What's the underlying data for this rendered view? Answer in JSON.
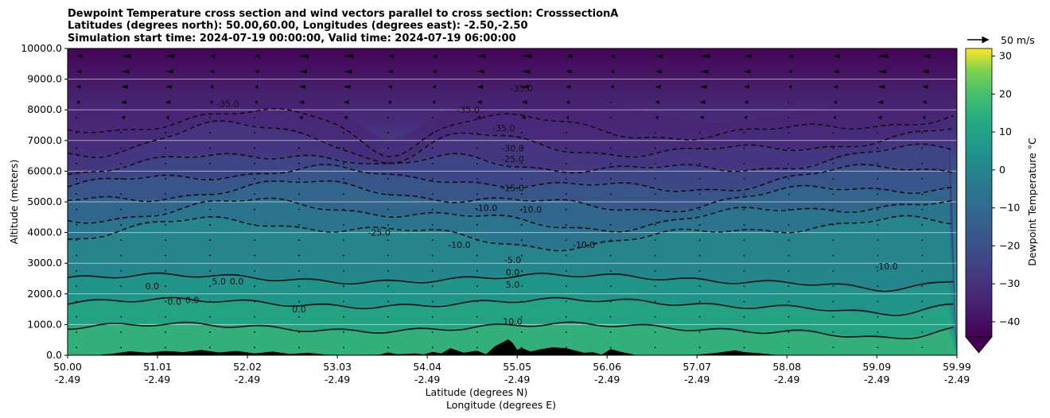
{
  "chart_data": {
    "type": "heatmap",
    "title_lines": [
      "Dewpoint Temperature cross section and wind vectors parallel to cross section: CrosssectionA",
      "Latitudes (degrees north): 50.00,60.00, Longitudes (degrees east): -2.50,-2.50",
      "Simulation start time: 2024-07-19 00:00:00, Valid time: 2024-07-19 06:00:00"
    ],
    "xlabel_primary": "Latitude (degrees N)",
    "xlabel_secondary": "Longitude (degrees E)",
    "ylabel": "Altitude (meters)",
    "x_ticks": [
      {
        "lat": "50.00",
        "lon": "-2.49",
        "value": 50.0
      },
      {
        "lat": "51.01",
        "lon": "-2.49",
        "value": 51.01
      },
      {
        "lat": "52.02",
        "lon": "-2.49",
        "value": 52.02
      },
      {
        "lat": "53.03",
        "lon": "-2.49",
        "value": 53.03
      },
      {
        "lat": "54.04",
        "lon": "-2.49",
        "value": 54.04
      },
      {
        "lat": "55.05",
        "lon": "-2.49",
        "value": 55.05
      },
      {
        "lat": "56.06",
        "lon": "-2.49",
        "value": 56.06
      },
      {
        "lat": "57.07",
        "lon": "-2.49",
        "value": 57.07
      },
      {
        "lat": "58.08",
        "lon": "-2.49",
        "value": 58.08
      },
      {
        "lat": "59.09",
        "lon": "-2.49",
        "value": 59.09
      },
      {
        "lat": "59.99",
        "lon": "-2.49",
        "value": 59.99
      }
    ],
    "y_ticks": [
      "0.0",
      "1000.0",
      "2000.0",
      "3000.0",
      "4000.0",
      "5000.0",
      "6000.0",
      "7000.0",
      "8000.0",
      "9000.0",
      "10000.0"
    ],
    "xlim": [
      50.0,
      59.99
    ],
    "ylim": [
      0,
      10000
    ],
    "grid": "horizontal",
    "colorbar": {
      "label": "Dewpoint Temperature °C",
      "ticks": [
        "−40",
        "−30",
        "−20",
        "−10",
        "0",
        "10",
        "20",
        "30"
      ],
      "range": [
        -44,
        32
      ],
      "extend": "min",
      "colormap": "viridis"
    },
    "wind_key_label": "50 m/s",
    "contour_levels": [
      -35,
      -30,
      -25,
      -20,
      -15,
      -10,
      -5,
      0,
      5,
      10
    ],
    "contour_labels": [
      {
        "text": "-35.0",
        "lat": 51.8,
        "alt": 8100
      },
      {
        "text": "-35.0",
        "lat": 54.5,
        "alt": 7900
      },
      {
        "text": "-35.0",
        "lat": 55.1,
        "alt": 8600
      },
      {
        "text": "-35.0",
        "lat": 54.9,
        "alt": 7300
      },
      {
        "text": "-30.0",
        "lat": 55.0,
        "alt": 6650
      },
      {
        "text": "-25.0",
        "lat": 55.0,
        "alt": 6300
      },
      {
        "text": "-25.0",
        "lat": 53.5,
        "alt": 3900
      },
      {
        "text": "-15.0",
        "lat": 55.0,
        "alt": 5350
      },
      {
        "text": "-10.0",
        "lat": 54.7,
        "alt": 4700
      },
      {
        "text": "-10.0",
        "lat": 55.2,
        "alt": 4650
      },
      {
        "text": "-10.0",
        "lat": 54.4,
        "alt": 3500
      },
      {
        "text": "-10.0",
        "lat": 55.8,
        "alt": 3500
      },
      {
        "text": "-10.0",
        "lat": 59.2,
        "alt": 2800
      },
      {
        "text": "-5.0",
        "lat": 55.0,
        "alt": 3000
      },
      {
        "text": "0.0",
        "lat": 55.0,
        "alt": 2600
      },
      {
        "text": "5.0",
        "lat": 55.0,
        "alt": 2200
      },
      {
        "text": "10.0",
        "lat": 55.0,
        "alt": 1000
      },
      {
        "text": "5.0",
        "lat": 51.7,
        "alt": 2300
      },
      {
        "text": "0.0",
        "lat": 51.9,
        "alt": 2300
      },
      {
        "text": "0.0",
        "lat": 50.95,
        "alt": 2150
      },
      {
        "text": "0.0",
        "lat": 51.2,
        "alt": 1650
      },
      {
        "text": "0.0",
        "lat": 51.4,
        "alt": 1700
      },
      {
        "text": "0.0",
        "lat": 52.6,
        "alt": 1400
      }
    ],
    "terrain_m": [
      [
        50.0,
        0
      ],
      [
        50.3,
        0
      ],
      [
        50.5,
        50
      ],
      [
        50.7,
        130
      ],
      [
        50.9,
        80
      ],
      [
        51.1,
        140
      ],
      [
        51.3,
        100
      ],
      [
        51.5,
        170
      ],
      [
        51.7,
        90
      ],
      [
        51.9,
        140
      ],
      [
        52.1,
        60
      ],
      [
        52.3,
        120
      ],
      [
        52.5,
        40
      ],
      [
        52.7,
        80
      ],
      [
        52.9,
        20
      ],
      [
        53.2,
        10
      ],
      [
        53.5,
        20
      ],
      [
        53.6,
        90
      ],
      [
        53.7,
        30
      ],
      [
        53.9,
        60
      ],
      [
        54.0,
        25
      ],
      [
        54.1,
        110
      ],
      [
        54.2,
        60
      ],
      [
        54.3,
        230
      ],
      [
        54.45,
        80
      ],
      [
        54.6,
        150
      ],
      [
        54.7,
        30
      ],
      [
        54.8,
        290
      ],
      [
        54.95,
        520
      ],
      [
        55.0,
        400
      ],
      [
        55.05,
        180
      ],
      [
        55.1,
        240
      ],
      [
        55.2,
        120
      ],
      [
        55.3,
        190
      ],
      [
        55.45,
        260
      ],
      [
        55.6,
        230
      ],
      [
        55.8,
        80
      ],
      [
        55.9,
        100
      ],
      [
        56.0,
        20
      ],
      [
        56.1,
        200
      ],
      [
        56.2,
        120
      ],
      [
        56.4,
        0
      ],
      [
        57.0,
        0
      ],
      [
        57.3,
        80
      ],
      [
        57.5,
        160
      ],
      [
        57.6,
        100
      ],
      [
        57.8,
        60
      ],
      [
        58.0,
        0
      ],
      [
        59.99,
        0
      ]
    ]
  }
}
